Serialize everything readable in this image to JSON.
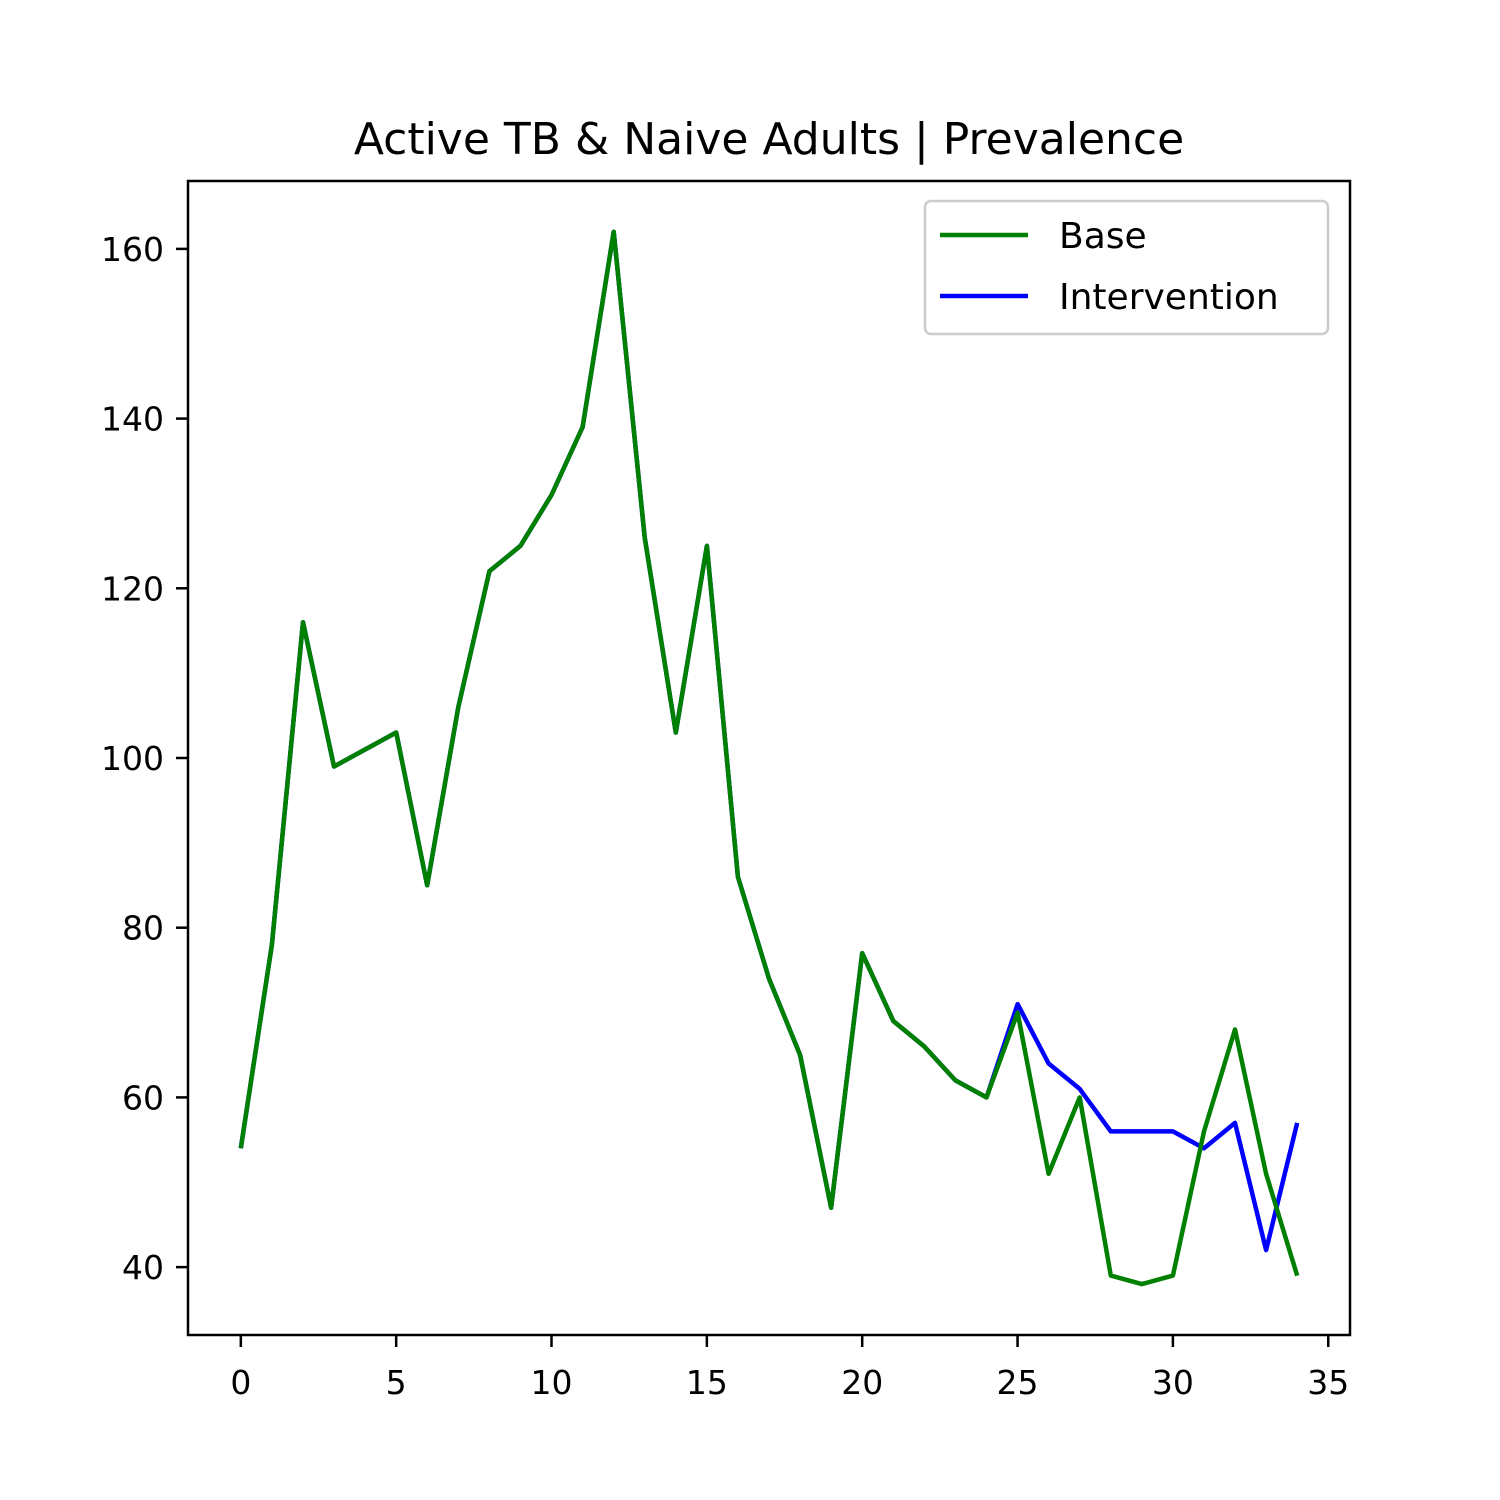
{
  "chart_data": {
    "type": "line",
    "title": "Active TB & Naive Adults | Prevalence",
    "xlabel": "",
    "ylabel": "",
    "xlim": [
      -1.7,
      35.7
    ],
    "ylim": [
      32,
      168
    ],
    "x_ticks": [
      0,
      5,
      10,
      15,
      20,
      25,
      30,
      35
    ],
    "y_ticks": [
      40,
      60,
      80,
      100,
      120,
      140,
      160
    ],
    "grid": false,
    "legend_position": "top-right",
    "x": [
      0,
      1,
      2,
      3,
      4,
      5,
      6,
      7,
      8,
      9,
      10,
      11,
      12,
      13,
      14,
      15,
      16,
      17,
      18,
      19,
      20,
      21,
      22,
      23,
      24,
      25,
      26,
      27,
      28,
      29,
      30,
      31,
      32,
      33,
      34
    ],
    "series": [
      {
        "name": "Base",
        "color": "#008000",
        "values": [
          54,
          78,
          116,
          99,
          101,
          103,
          85,
          106,
          122,
          125,
          131,
          139,
          162,
          126,
          103,
          125,
          86,
          74,
          65,
          47,
          77,
          69,
          66,
          62,
          60,
          70,
          51,
          60,
          39,
          38,
          39,
          56,
          68,
          51,
          39
        ]
      },
      {
        "name": "Intervention",
        "color": "#0000ff",
        "values": [
          54,
          78,
          116,
          99,
          101,
          103,
          85,
          106,
          122,
          125,
          131,
          139,
          162,
          126,
          103,
          125,
          86,
          74,
          65,
          47,
          77,
          69,
          66,
          62,
          60,
          71,
          64,
          61,
          56,
          56,
          56,
          54,
          57,
          42,
          57
        ]
      }
    ]
  }
}
